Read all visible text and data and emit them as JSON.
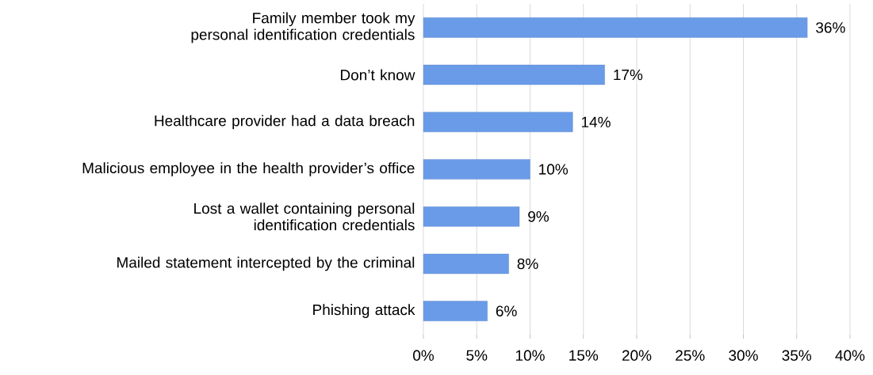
{
  "chart_data": {
    "type": "bar",
    "orientation": "horizontal",
    "categories": [
      "Family member took my personal identification credentials",
      "Don’t know",
      "Healthcare provider had a data breach",
      "Malicious employee in the health provider’s office",
      "Lost a wallet containing personal identification credentials",
      "Mailed statement intercepted by the criminal",
      "Phishing attack"
    ],
    "values": [
      36,
      17,
      14,
      10,
      9,
      8,
      6
    ],
    "value_labels": [
      "36%",
      "17%",
      "14%",
      "10%",
      "9%",
      "8%",
      "6%"
    ],
    "color": "#6a9be8",
    "xlim": [
      0,
      40
    ],
    "xticks": [
      {
        "value": 0,
        "label": "0%"
      },
      {
        "value": 5,
        "label": "5%"
      },
      {
        "value": 10,
        "label": "10%"
      },
      {
        "value": 15,
        "label": "15%"
      },
      {
        "value": 20,
        "label": "20%"
      },
      {
        "value": 25,
        "label": "25%"
      },
      {
        "value": 30,
        "label": "30%"
      },
      {
        "value": 35,
        "label": "35%"
      },
      {
        "value": 40,
        "label": "40%"
      }
    ],
    "grid": "x"
  }
}
